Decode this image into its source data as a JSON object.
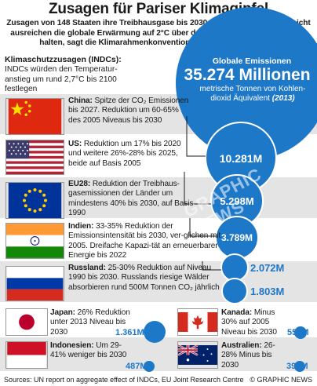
{
  "title": "Zusagen für Pariser Klimagipfel",
  "subtitle": "Zusagen von 148 Staaten ihre Treibhausgase bis 2030 zu reduzieren werden nicht ausreichen die globale Erwärmung auf 2°C über dem vorindustriellen Niveau zu halten, sagt die Klimarahmenkonvention der Vereinten Nationen",
  "indc_header": "Klimaschutzzusagen (INDCs):",
  "indc_intro": "INDCs würden den Temperatur-anstieg um rund 2,7°C bis 2100 festlegen",
  "global": {
    "label": "Globale Emissionen",
    "value": "35.274 Millionen",
    "desc": "metrische Tonnen von Kohlen-dioxid Äquivalent",
    "year": "(2013)"
  },
  "countries": [
    {
      "name": "China:",
      "text": "Spitze der CO₂ Emissionen bis 2027. Reduktion um 60-65% des 2005 Niveaus bis 2030",
      "emissions": "10.281M"
    },
    {
      "name": "US:",
      "text": "Reduktion um 17% bis 2020 und weitere 26%-28% bis 2025, beide auf Basis 2005",
      "emissions": "5.298M"
    },
    {
      "name": "EU28:",
      "text": "Reduktion der Treibhaus-gasemissionen der Länder um mindestens 40% bis 2030, auf Basis 1990",
      "emissions": "3.789M"
    },
    {
      "name": "Indien:",
      "text": "33-35% Reduktion der Emissionsintensität bis 2030, ver-glichen mit 2005. Dreifache Kapazi-tät an erneuerbarer Energie bis 2022",
      "emissions": "2.072M"
    },
    {
      "name": "Russland:",
      "text": "25-30% Reduktion auf Niveau 1990 bis 2030. Russlands riesige Wälder absorbieren rund 500M Tonnen CO₂ jährlich",
      "emissions": "1.803M"
    },
    {
      "name": "Japan:",
      "text": "26% Reduktion unter 2013 Niveau bis 2030",
      "emissions": "1.361M"
    },
    {
      "name": "Kanada:",
      "text": "Minus 30% auf 2005 Niveau bis 2030",
      "emissions": "551M"
    },
    {
      "name": "Indonesien:",
      "text": "Um 29-41% weniger bis 2030",
      "emissions": "487M"
    },
    {
      "name": "Australien:",
      "text": "26-28% Minus bis 2030",
      "emissions": "395M"
    }
  ],
  "footer": {
    "source": "Sources: UN report on aggregate effect of INDCs, EU Joint Research Centre",
    "credit": "© GRAPHIC NEWS"
  },
  "watermark": "GRAPHIC NEWS",
  "colors": {
    "bubble_blue": "#1e78c8",
    "band_grey": "#e4e4e4",
    "china_red": "#de2910",
    "flag_yellow": "#ffde00",
    "eu_blue": "#003399",
    "india_saffron": "#ff9933",
    "india_green": "#138808"
  }
}
